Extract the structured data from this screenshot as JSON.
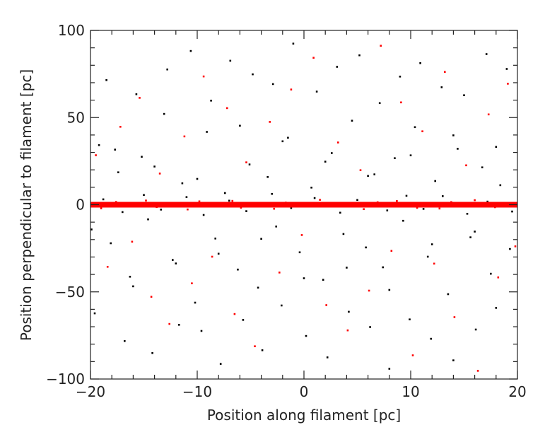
{
  "chart_data": {
    "type": "scatter",
    "title": "",
    "xlabel": "Position along  filament [pc]",
    "ylabel": "Position perpendicular to filament [pc]",
    "xlim": [
      -20,
      20
    ],
    "ylim": [
      -100,
      100
    ],
    "x_ticks": [
      -20,
      -10,
      0,
      10,
      20
    ],
    "y_ticks": [
      -100,
      -50,
      0,
      50,
      100
    ],
    "grid": false,
    "legend": "none",
    "series": [
      {
        "color": "#000000",
        "x": [
          -19.2,
          -18.1,
          -17.4,
          -16.3,
          -15.2,
          -14.6,
          -13.1,
          -12.3,
          -11.4,
          -10.2,
          -9.1,
          -8.3,
          -7.4,
          -6.2,
          -5.1,
          -4.3,
          -3.4,
          -2.6,
          -1.5,
          -0.4,
          0.7,
          1.8,
          2.6,
          3.7,
          4.5,
          5.8,
          6.6,
          7.4,
          8.5,
          9.3,
          10.4,
          11.6,
          12.3,
          13.5,
          14.4,
          15.6,
          16.7,
          17.5,
          18.4,
          19.3,
          -19.6,
          -18.5,
          -16.8,
          -15.7,
          -14.2,
          -12.8,
          -11.7,
          -10.6,
          -9.6,
          -8.7,
          -7.8,
          -6.9,
          -5.7,
          -4.8,
          -3.9,
          -2.9,
          -2.1,
          -1.0,
          0.2,
          1.2,
          2.2,
          3.1,
          4.2,
          5.2,
          6.2,
          7.1,
          8.0,
          9.0,
          9.9,
          10.9,
          11.9,
          12.9,
          14.0,
          15.0,
          16.1,
          17.1,
          18.0,
          19.0,
          -18.8,
          -17.0,
          -15.0,
          -13.4,
          -11.0,
          -9.4,
          -7.0,
          -5.4,
          -3.0,
          -1.2,
          1.0,
          3.4,
          5.0,
          7.8,
          9.6,
          11.2,
          13.0,
          15.3,
          17.2,
          19.5,
          -19.9,
          -17.7,
          -16.0,
          -14.0,
          -12.0,
          -10.0,
          -8.0,
          -6.0,
          -4.0,
          -2.0,
          0.0,
          2.0,
          4.0,
          6.0,
          8.0,
          10.0,
          12.0,
          14.0,
          16.0,
          18.0
        ],
        "y": [
          34.2,
          -22.1,
          18.6,
          -41.3,
          27.5,
          -8.4,
          52.1,
          -31.7,
          12.3,
          -56.2,
          41.8,
          -19.4,
          6.7,
          -37.2,
          23.1,
          -47.6,
          15.9,
          -12.5,
          38.4,
          -27.3,
          9.8,
          -43.1,
          29.6,
          -16.8,
          48.2,
          -24.5,
          17.4,
          -35.9,
          26.7,
          -9.2,
          44.5,
          -29.8,
          13.6,
          -51.3,
          32.1,
          -18.7,
          21.4,
          -39.6,
          11.2,
          -25.4,
          -62.3,
          71.5,
          -78.2,
          63.4,
          -85.1,
          77.6,
          -68.9,
          88.2,
          -72.4,
          59.7,
          -91.3,
          82.6,
          -66.1,
          74.8,
          -83.5,
          69.2,
          -57.8,
          92.4,
          -75.3,
          64.9,
          -87.6,
          79.1,
          -61.4,
          85.7,
          -70.2,
          58.3,
          -94.1,
          73.5,
          -65.8,
          81.2,
          -76.9,
          67.4,
          -89.3,
          62.8,
          -71.6,
          86.4,
          -59.2,
          77.9,
          3.1,
          -4.2,
          5.6,
          -2.8,
          4.4,
          -5.9,
          2.3,
          -3.7,
          6.2,
          -1.9,
          3.8,
          -4.6,
          2.7,
          -3.3,
          5.1,
          -2.4,
          4.9,
          -5.2,
          1.8,
          -3.9,
          -14.2,
          31.6,
          -46.8,
          21.9,
          -33.7,
          14.8,
          -28.1,
          45.3,
          -19.6,
          36.4,
          -42.2,
          24.7,
          -36.1,
          16.5,
          -48.9,
          28.3,
          -22.7,
          39.8,
          -15.4,
          33.2
        ]
      },
      {
        "color": "#ff0000",
        "x": [
          -19.5,
          -18.4,
          -17.2,
          -16.1,
          -15.4,
          -14.3,
          -13.5,
          -12.6,
          -11.2,
          -10.5,
          -9.4,
          -8.6,
          -7.2,
          -6.5,
          -5.4,
          -4.6,
          -3.2,
          -2.3,
          -1.2,
          -0.2,
          0.9,
          2.1,
          3.2,
          4.1,
          5.3,
          6.1,
          7.2,
          8.2,
          9.1,
          10.2,
          11.1,
          12.2,
          13.2,
          14.1,
          15.2,
          16.3,
          17.3,
          18.2,
          19.1,
          19.8,
          -19.0,
          -17.6,
          -16.6,
          -14.8,
          -13.8,
          -12.1,
          -10.9,
          -9.8,
          -8.1,
          -6.7,
          -5.9,
          -4.1,
          -2.8,
          -1.7,
          0.4,
          1.5,
          2.9,
          3.9,
          5.6,
          6.9,
          7.8,
          8.7,
          10.6,
          11.7,
          12.7,
          13.8,
          14.8,
          16.0,
          17.9,
          18.8
        ],
        "y": [
          28.4,
          -35.6,
          44.7,
          -21.2,
          61.3,
          -52.8,
          17.9,
          -68.4,
          39.2,
          -45.1,
          73.6,
          -29.8,
          55.4,
          -62.7,
          24.3,
          -81.2,
          47.5,
          -38.9,
          66.1,
          -17.4,
          84.3,
          -57.6,
          35.7,
          -72.1,
          19.8,
          -49.3,
          91.2,
          -26.5,
          58.7,
          -86.4,
          42.1,
          -33.8,
          76.2,
          -64.5,
          22.6,
          -95.3,
          51.8,
          -41.7,
          69.4,
          -23.9,
          -2.1,
          1.6,
          -0.8,
          2.4,
          -1.3,
          0.6,
          -2.7,
          1.9,
          -0.4,
          2.2,
          -1.7,
          0.9,
          -2.3,
          1.2,
          -0.6,
          2.8,
          -1.1,
          0.3,
          -2.5,
          1.4,
          -0.9,
          2.1,
          -1.8,
          0.7,
          -2.2,
          1.5,
          -0.5,
          2.6,
          -1.4,
          0.2
        ]
      }
    ],
    "dense_band": {
      "color": "#ff0000",
      "y": 0,
      "x_range": [
        -20,
        20
      ]
    }
  }
}
